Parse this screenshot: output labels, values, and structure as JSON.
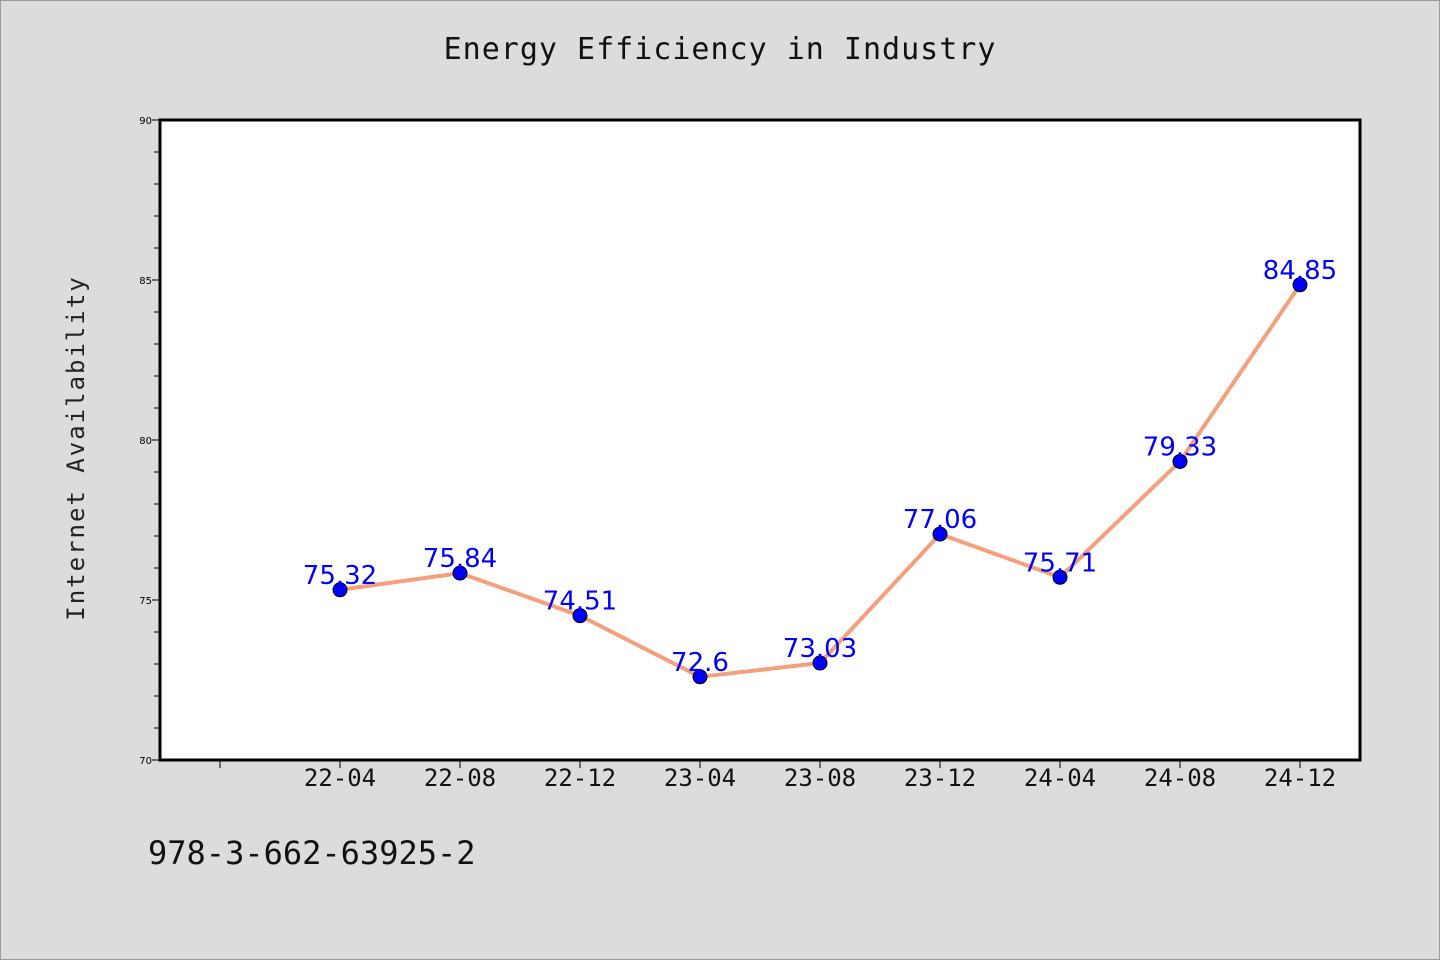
{
  "chart_data": {
    "type": "line",
    "title": "Energy Efficiency in Industry",
    "xlabel": "",
    "ylabel": "Internet Availability",
    "categories": [
      "22-04",
      "22-08",
      "22-12",
      "23-04",
      "23-08",
      "23-12",
      "24-04",
      "24-08",
      "24-12"
    ],
    "series": [
      {
        "values": [
          75.32,
          75.84,
          74.51,
          72.6,
          73.03,
          77.06,
          75.71,
          79.33,
          84.85
        ],
        "data_labels": [
          "75.32",
          "75.84",
          "74.51",
          "72.6",
          "73.03",
          "77.06",
          "75.71",
          "79.33",
          "84.85"
        ]
      }
    ],
    "ylim": [
      70,
      90
    ],
    "yticks": [
      "70",
      "75",
      "80",
      "85",
      "90"
    ],
    "grid": false,
    "legend": "none",
    "colors": {
      "line": "#f4a07c",
      "marker": "#0000ff",
      "data_label": "#0000ff",
      "plot_background": "#ffffff",
      "page_background": "#dcdcdc"
    }
  },
  "footer": {
    "code": "978-3-662-63925-2"
  }
}
